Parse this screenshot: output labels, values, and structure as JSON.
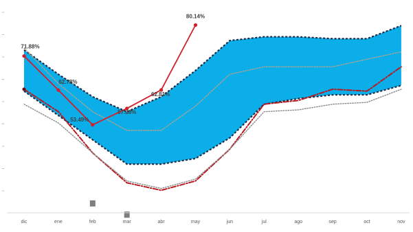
{
  "chart_data": {
    "type": "line",
    "title": "",
    "xlabel": "",
    "ylabel": "",
    "categories": [
      "dic",
      "ene",
      "feb",
      "mar",
      "abr",
      "may",
      "jun",
      "jul",
      "ago",
      "sep",
      "oct",
      "nov"
    ],
    "ylim": [
      30,
      85
    ],
    "grid": false,
    "legend": "none",
    "band": {
      "upper": [
        73.5,
        67,
        61,
        57,
        61,
        68,
        76,
        77,
        77,
        76.5,
        76.5,
        80
      ],
      "lower": [
        62.5,
        56,
        49.5,
        43,
        43,
        44.5,
        50,
        59,
        60.5,
        61.5,
        61.5,
        64
      ],
      "fill": "#0baee8",
      "edge": "#1f2a44"
    },
    "series": [
      {
        "values": [
          74,
          64.5,
          57,
          52,
          52,
          58.5,
          67,
          69,
          69,
          69,
          71,
          73
        ],
        "color": "#b1a390",
        "style": "dotted"
      },
      {
        "values": [
          71.88,
          62.78,
          53.49,
          57.88,
          62.81,
          80.14,
          null,
          null,
          null,
          null,
          null,
          null
        ],
        "color": "#d1212f",
        "style": "solid"
      },
      {
        "values": [
          63,
          57,
          46,
          38,
          36,
          38.5,
          47,
          59,
          60,
          63,
          62.5,
          69
        ],
        "color": "#b71b22",
        "style": "dashdot"
      },
      {
        "values": [
          59,
          54,
          46,
          38.5,
          36.5,
          39,
          47,
          57,
          57.5,
          59,
          59.5,
          63
        ],
        "color": "#8a8a8a",
        "style": "dotted"
      }
    ],
    "data_labels": [
      "71.88%",
      "62.78%",
      "53.49%",
      "57.88%",
      "62.81%",
      "80.14%"
    ],
    "markers": {
      "values": [
        32.5,
        29.5
      ],
      "x": [
        "feb",
        "mar"
      ],
      "color": "#7f7f7f"
    },
    "colors": {
      "axis": "#d9d9d9",
      "tick_text": "#595959"
    }
  }
}
